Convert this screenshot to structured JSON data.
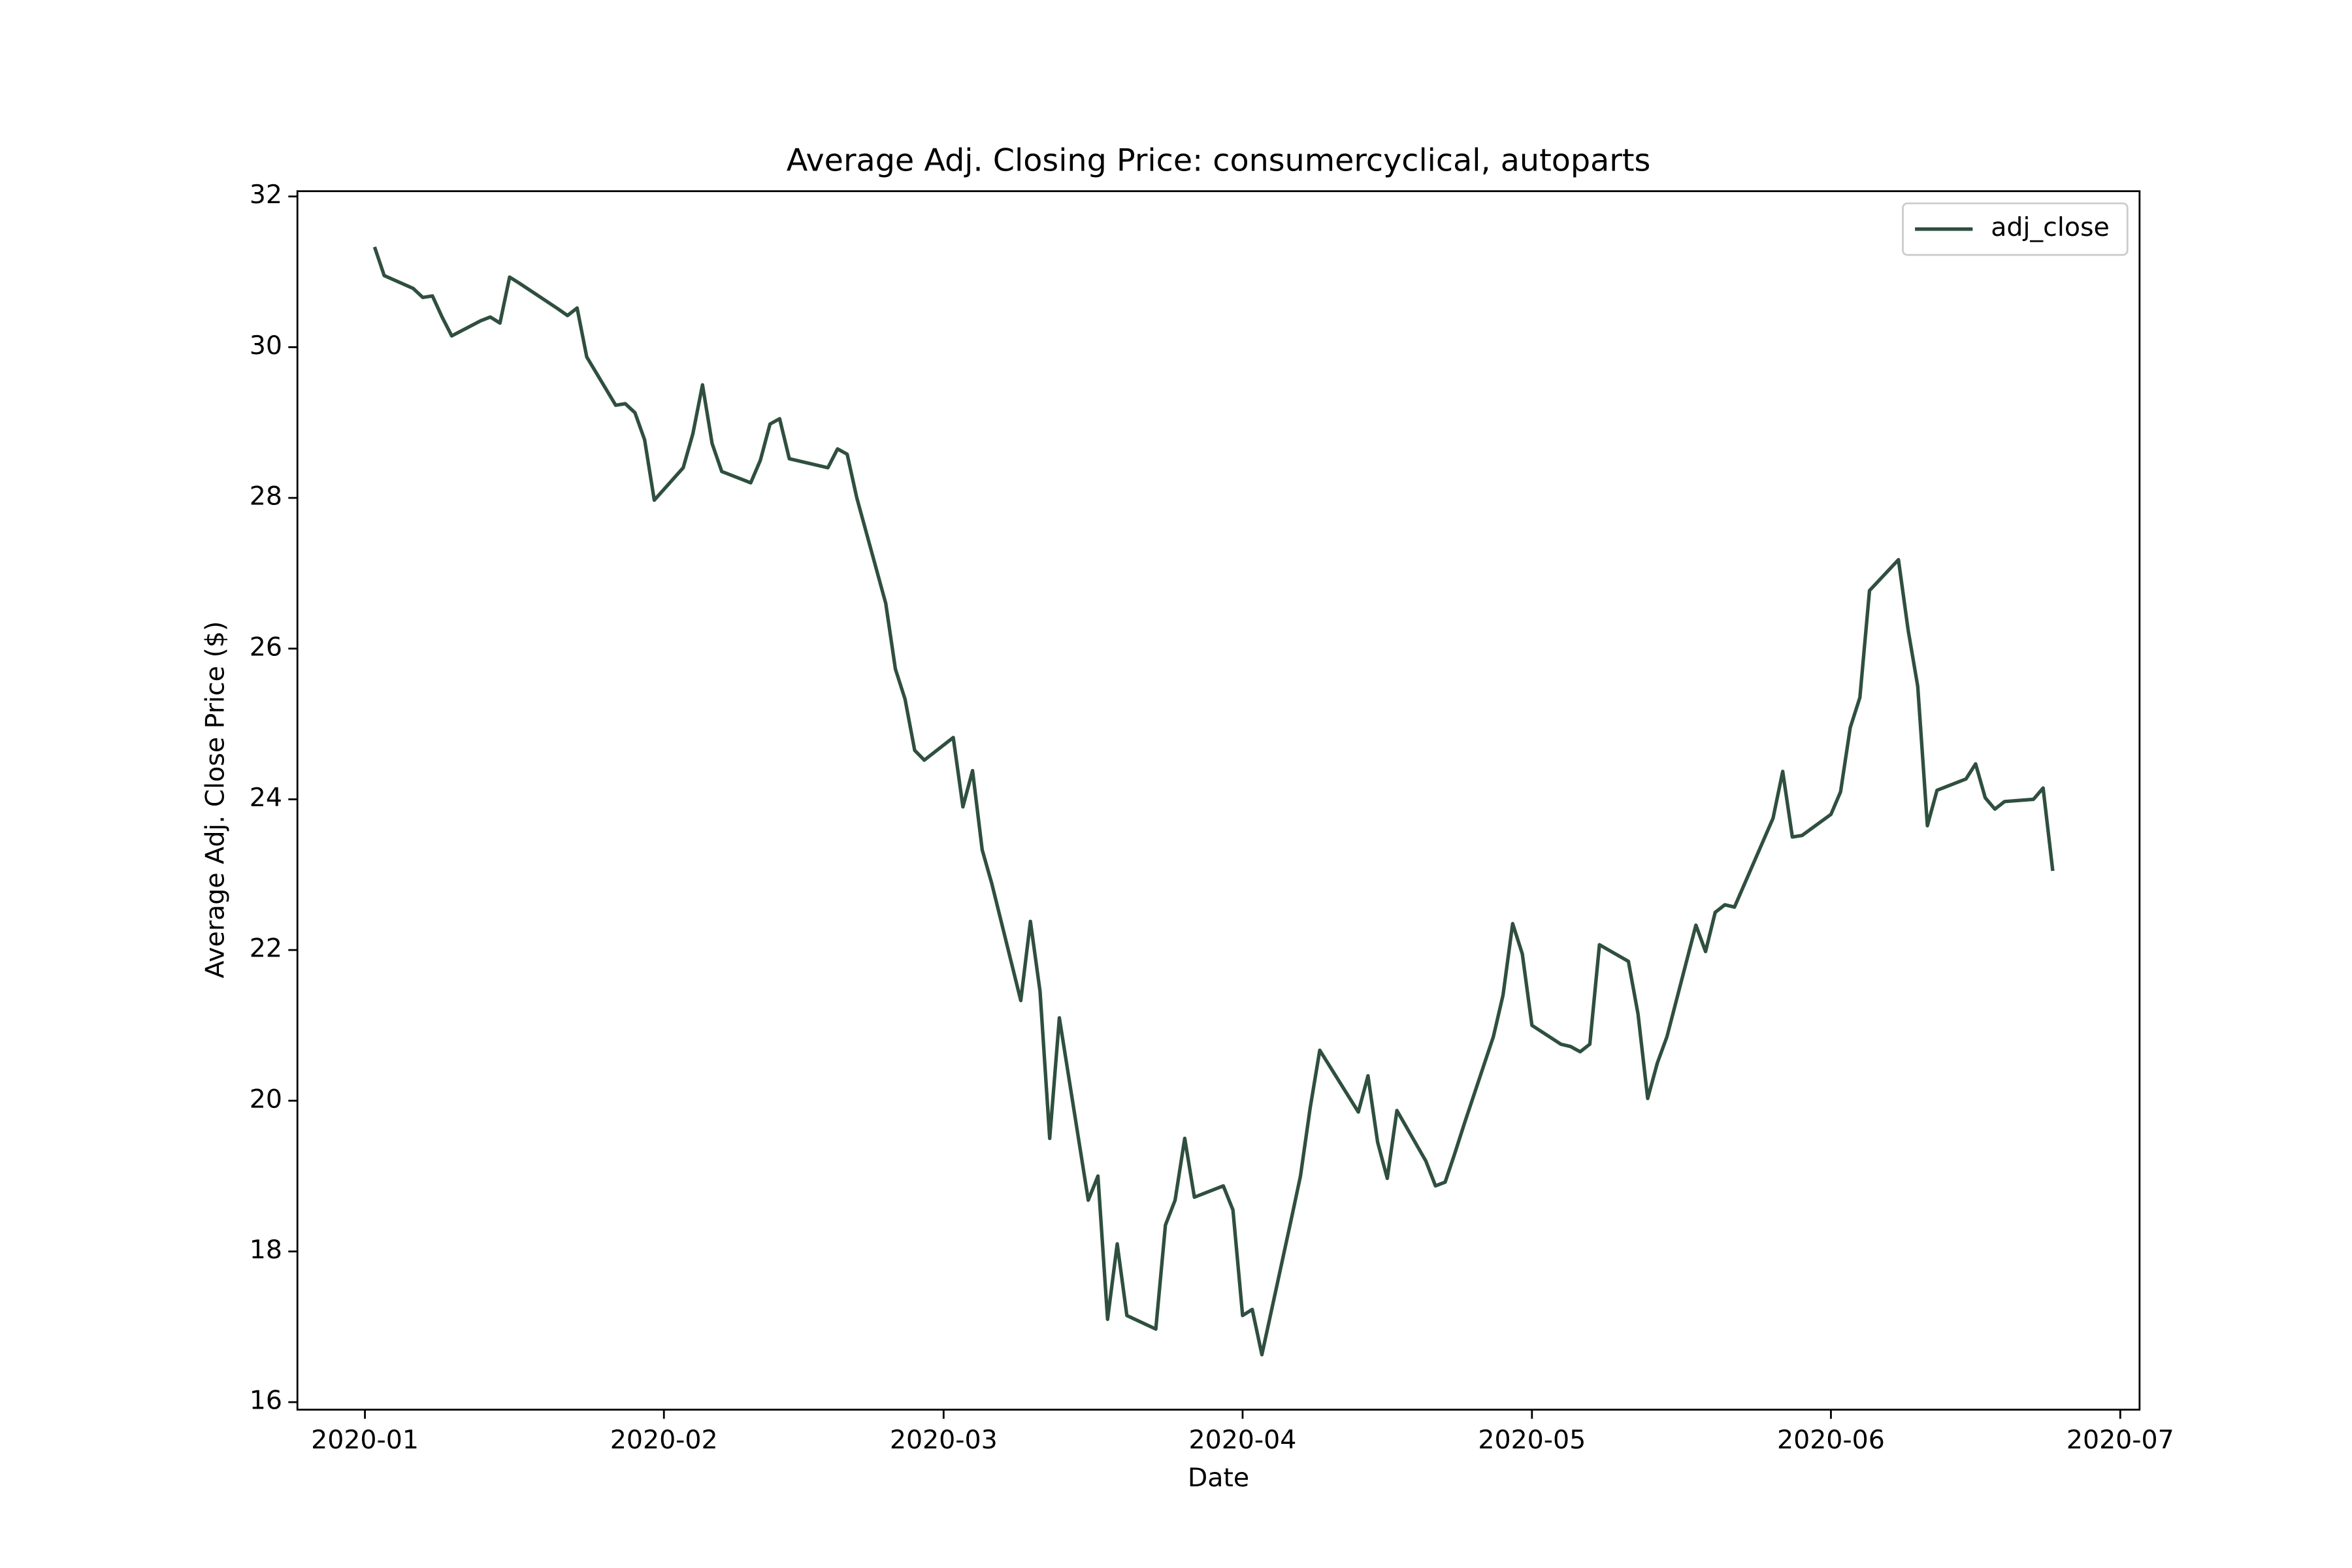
{
  "chart_data": {
    "type": "line",
    "title": "Average Adj. Closing Price: consumercyclical, autoparts",
    "xlabel": "Date",
    "ylabel": "Average Adj. Close Price ($)",
    "x": [
      "2020-01-02",
      "2020-01-03",
      "2020-01-06",
      "2020-01-07",
      "2020-01-08",
      "2020-01-09",
      "2020-01-10",
      "2020-01-13",
      "2020-01-14",
      "2020-01-15",
      "2020-01-16",
      "2020-01-17",
      "2020-01-21",
      "2020-01-22",
      "2020-01-23",
      "2020-01-24",
      "2020-01-27",
      "2020-01-28",
      "2020-01-29",
      "2020-01-30",
      "2020-01-31",
      "2020-02-03",
      "2020-02-04",
      "2020-02-05",
      "2020-02-06",
      "2020-02-07",
      "2020-02-10",
      "2020-02-11",
      "2020-02-12",
      "2020-02-13",
      "2020-02-14",
      "2020-02-18",
      "2020-02-19",
      "2020-02-20",
      "2020-02-21",
      "2020-02-24",
      "2020-02-25",
      "2020-02-26",
      "2020-02-27",
      "2020-02-28",
      "2020-03-02",
      "2020-03-03",
      "2020-03-04",
      "2020-03-05",
      "2020-03-06",
      "2020-03-09",
      "2020-03-10",
      "2020-03-11",
      "2020-03-12",
      "2020-03-13",
      "2020-03-16",
      "2020-03-17",
      "2020-03-18",
      "2020-03-19",
      "2020-03-20",
      "2020-03-23",
      "2020-03-24",
      "2020-03-25",
      "2020-03-26",
      "2020-03-27",
      "2020-03-30",
      "2020-03-31",
      "2020-04-01",
      "2020-04-02",
      "2020-04-03",
      "2020-04-06",
      "2020-04-07",
      "2020-04-08",
      "2020-04-09",
      "2020-04-13",
      "2020-04-14",
      "2020-04-15",
      "2020-04-16",
      "2020-04-17",
      "2020-04-20",
      "2020-04-21",
      "2020-04-22",
      "2020-04-23",
      "2020-04-24",
      "2020-04-27",
      "2020-04-28",
      "2020-04-29",
      "2020-04-30",
      "2020-05-01",
      "2020-05-04",
      "2020-05-05",
      "2020-05-06",
      "2020-05-07",
      "2020-05-08",
      "2020-05-11",
      "2020-05-12",
      "2020-05-13",
      "2020-05-14",
      "2020-05-15",
      "2020-05-18",
      "2020-05-19",
      "2020-05-20",
      "2020-05-21",
      "2020-05-22",
      "2020-05-26",
      "2020-05-27",
      "2020-05-28",
      "2020-05-29",
      "2020-06-01",
      "2020-06-02",
      "2020-06-03",
      "2020-06-04",
      "2020-06-05",
      "2020-06-08",
      "2020-06-09",
      "2020-06-10",
      "2020-06-11",
      "2020-06-12",
      "2020-06-15",
      "2020-06-16",
      "2020-06-17",
      "2020-06-18",
      "2020-06-19",
      "2020-06-22",
      "2020-06-23",
      "2020-06-24"
    ],
    "series": [
      {
        "name": "adj_close",
        "color": "#2f4f3f",
        "values": [
          31.33,
          30.95,
          30.78,
          30.66,
          30.68,
          30.4,
          30.15,
          30.35,
          30.4,
          30.32,
          30.93,
          30.85,
          30.51,
          30.42,
          30.52,
          29.87,
          29.23,
          29.25,
          29.13,
          28.77,
          27.97,
          28.4,
          28.85,
          29.5,
          28.72,
          28.35,
          28.2,
          28.5,
          28.98,
          29.05,
          28.52,
          28.4,
          28.65,
          28.58,
          28.0,
          26.6,
          25.73,
          25.33,
          24.65,
          24.52,
          24.82,
          23.9,
          24.38,
          23.33,
          22.88,
          21.33,
          22.38,
          21.45,
          19.5,
          21.1,
          18.68,
          19.0,
          17.1,
          18.1,
          17.15,
          16.97,
          18.35,
          18.68,
          19.5,
          18.72,
          18.87,
          18.55,
          17.15,
          17.23,
          16.63,
          18.4,
          19.0,
          19.9,
          20.67,
          19.85,
          20.33,
          19.45,
          18.97,
          19.87,
          19.2,
          18.87,
          18.92,
          19.3,
          19.7,
          20.85,
          21.4,
          22.35,
          21.95,
          21.0,
          20.75,
          20.72,
          20.65,
          20.75,
          22.07,
          21.85,
          21.15,
          20.03,
          20.5,
          20.85,
          22.33,
          21.98,
          22.5,
          22.6,
          22.57,
          23.75,
          24.37,
          23.5,
          23.52,
          23.8,
          24.1,
          24.95,
          25.35,
          26.77,
          27.18,
          26.25,
          25.5,
          23.65,
          24.12,
          24.27,
          24.47,
          24.02,
          23.87,
          23.97,
          24.0,
          24.15,
          23.05
        ]
      }
    ],
    "xlim": [
      "2019-12-25",
      "2020-07-03"
    ],
    "ylim": [
      15.9,
      32.07
    ],
    "xticks": [
      {
        "value": "2020-01-01",
        "label": "2020-01"
      },
      {
        "value": "2020-02-01",
        "label": "2020-02"
      },
      {
        "value": "2020-03-01",
        "label": "2020-03"
      },
      {
        "value": "2020-04-01",
        "label": "2020-04"
      },
      {
        "value": "2020-05-01",
        "label": "2020-05"
      },
      {
        "value": "2020-06-01",
        "label": "2020-06"
      },
      {
        "value": "2020-07-01",
        "label": "2020-07"
      }
    ],
    "yticks": [
      16,
      18,
      20,
      22,
      24,
      26,
      28,
      30,
      32
    ],
    "legend": "upper right"
  }
}
